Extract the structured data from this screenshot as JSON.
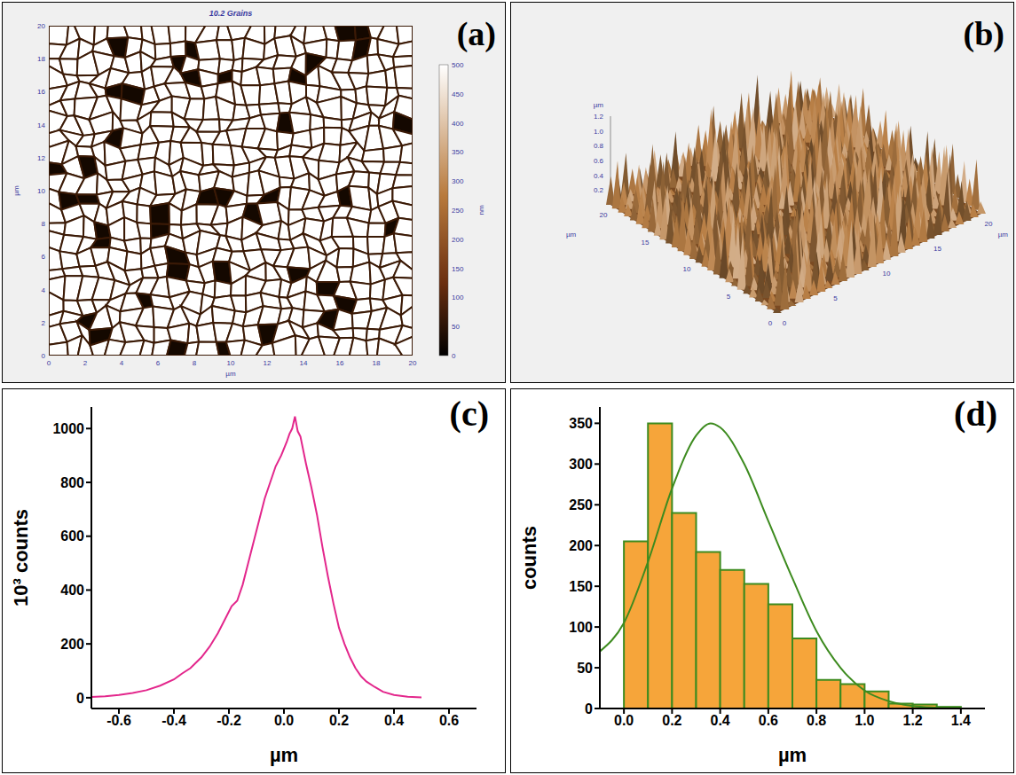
{
  "chart_data": [
    {
      "type": "image",
      "panel_label": "(a)",
      "title": "10.2 Grains",
      "x_label": "µm",
      "y_label": "µm",
      "xlim": [
        0,
        20
      ],
      "xticks": [
        0,
        2,
        4,
        6,
        8,
        10,
        12,
        14,
        16,
        18,
        20
      ],
      "ylim": [
        0,
        20
      ],
      "yticks": [
        0,
        2,
        4,
        6,
        8,
        10,
        12,
        14,
        16,
        18,
        20
      ],
      "colorbar": {
        "range": [
          0,
          500
        ],
        "ticks": [
          0,
          50,
          100,
          150,
          200,
          250,
          300,
          350,
          400,
          450,
          500
        ],
        "label": "nm"
      }
    },
    {
      "type": "surface",
      "panel_label": "(b)",
      "x_label": "µm",
      "y_label": "µm",
      "z_label": "µm",
      "xlim": [
        0,
        20
      ],
      "xticks": [
        0,
        5,
        10,
        15,
        20
      ],
      "ylim": [
        0,
        20
      ],
      "yticks": [
        0,
        5,
        10,
        15,
        20
      ],
      "zlim": [
        0,
        1.2
      ],
      "zticks": [
        0.2,
        0.4,
        0.6,
        0.8,
        {
          "value": 1,
          "label": "1.0"
        },
        1.2
      ]
    },
    {
      "type": "line",
      "panel_label": "(c)",
      "x_label": "µm",
      "y_label": "10³ counts",
      "color": "#e3278c",
      "x": [
        -0.7,
        -0.65,
        -0.6,
        -0.55,
        -0.5,
        -0.45,
        -0.4,
        -0.37,
        -0.34,
        -0.3,
        -0.27,
        -0.24,
        -0.21,
        -0.19,
        -0.17,
        -0.15,
        -0.13,
        -0.11,
        -0.09,
        -0.07,
        -0.05,
        -0.03,
        -0.01,
        0.01,
        0.02,
        0.03,
        0.04,
        0.05,
        0.06,
        0.08,
        0.1,
        0.12,
        0.14,
        0.16,
        0.18,
        0.2,
        0.22,
        0.24,
        0.26,
        0.28,
        0.3,
        0.33,
        0.36,
        0.4,
        0.45,
        0.5
      ],
      "values": [
        3,
        5,
        10,
        18,
        28,
        45,
        68,
        90,
        110,
        150,
        190,
        240,
        300,
        340,
        360,
        420,
        500,
        580,
        660,
        740,
        800,
        860,
        900,
        950,
        980,
        1000,
        1045,
        990,
        970,
        870,
        780,
        680,
        560,
        450,
        350,
        260,
        200,
        150,
        110,
        80,
        60,
        40,
        22,
        10,
        4,
        1
      ],
      "xlim": [
        -0.7,
        0.7
      ],
      "xticks": [
        -0.6,
        -0.4,
        -0.2,
        {
          "value": 0,
          "label": "0.0"
        },
        0.2,
        0.4,
        0.6
      ],
      "ylim": [
        -40,
        1080
      ],
      "yticks": [
        0,
        200,
        400,
        600,
        800,
        1000
      ]
    },
    {
      "type": "histogram",
      "panel_label": "(d)",
      "x_label": "µm",
      "y_label": "counts",
      "bins": [
        0,
        0.1,
        0.2,
        0.3,
        0.4,
        0.5,
        0.6,
        0.7,
        0.8,
        0.9,
        1,
        1.1,
        1.2,
        1.3,
        1.4
      ],
      "series": [
        {
          "type": "bar",
          "color": "#f6a53a",
          "values": [
            205,
            350,
            240,
            192,
            170,
            153,
            128,
            86,
            35,
            30,
            21,
            6,
            5,
            2
          ]
        },
        {
          "type": "line",
          "color": "#3d8b1f",
          "x": [
            -0.1,
            0,
            0.1,
            0.2,
            0.3,
            0.36,
            0.4,
            0.5,
            0.6,
            0.7,
            0.8,
            0.9,
            1,
            1.1,
            1.2,
            1.3,
            1.4
          ],
          "values": [
            70,
            105,
            180,
            270,
            335,
            350,
            345,
            300,
            230,
            160,
            95,
            50,
            22,
            9,
            3,
            1,
            0
          ]
        }
      ],
      "xlim": [
        -0.1,
        1.5
      ],
      "xticks": [
        {
          "value": 0,
          "label": "0.0"
        },
        0.2,
        0.4,
        0.6,
        0.8,
        {
          "value": 1,
          "label": "1.0"
        },
        1.2,
        1.4
      ],
      "ylim": [
        0,
        370
      ],
      "yticks": [
        0,
        50,
        100,
        150,
        200,
        250,
        300,
        350
      ]
    }
  ]
}
